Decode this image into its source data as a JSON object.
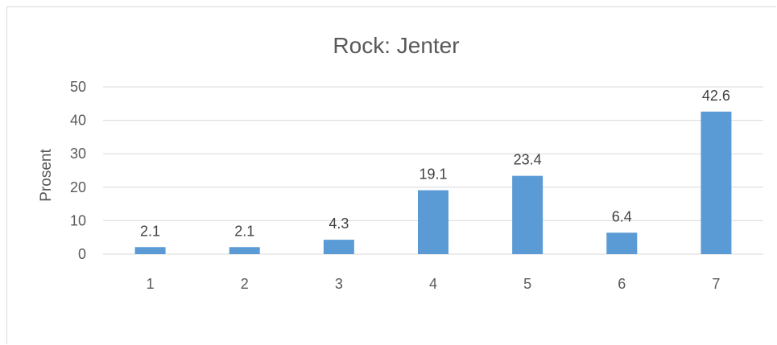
{
  "chart_data": {
    "type": "bar",
    "title": "Rock: Jenter",
    "xlabel": "",
    "ylabel": "Prosent",
    "categories": [
      "1",
      "2",
      "3",
      "4",
      "5",
      "6",
      "7"
    ],
    "values": [
      2.1,
      2.1,
      4.3,
      19.1,
      23.4,
      6.4,
      42.6
    ],
    "data_labels": [
      "2.1",
      "2.1",
      "4.3",
      "19.1",
      "23.4",
      "6.4",
      "42.6"
    ],
    "ylim": [
      0,
      50
    ],
    "yticks": [
      0,
      10,
      20,
      30,
      40,
      50
    ],
    "grid": true,
    "legend": "none",
    "bar_color": "#5b9bd5",
    "grid_color": "#d9d9d9"
  }
}
